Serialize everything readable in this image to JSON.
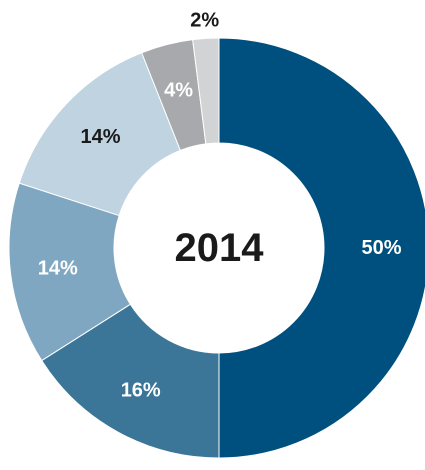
{
  "chart_data": {
    "type": "pie",
    "center_label": "2014",
    "slices": [
      {
        "value": 50,
        "label": "50%",
        "color": "#00507f",
        "label_color": "#ffffff"
      },
      {
        "value": 16,
        "label": "16%",
        "color": "#3b7597",
        "label_color": "#ffffff"
      },
      {
        "value": 14,
        "label": "14%",
        "color": "#7fa7c1",
        "label_color": "#ffffff"
      },
      {
        "value": 14,
        "label": "14%",
        "color": "#bfd3e1",
        "label_color": "#1a1a1a"
      },
      {
        "value": 4,
        "label": "4%",
        "color": "#a7a9ac",
        "label_color": "#ffffff"
      },
      {
        "value": 2,
        "label": "2%",
        "color": "#d2d3d5",
        "label_color": "#1a1a1a"
      }
    ]
  }
}
